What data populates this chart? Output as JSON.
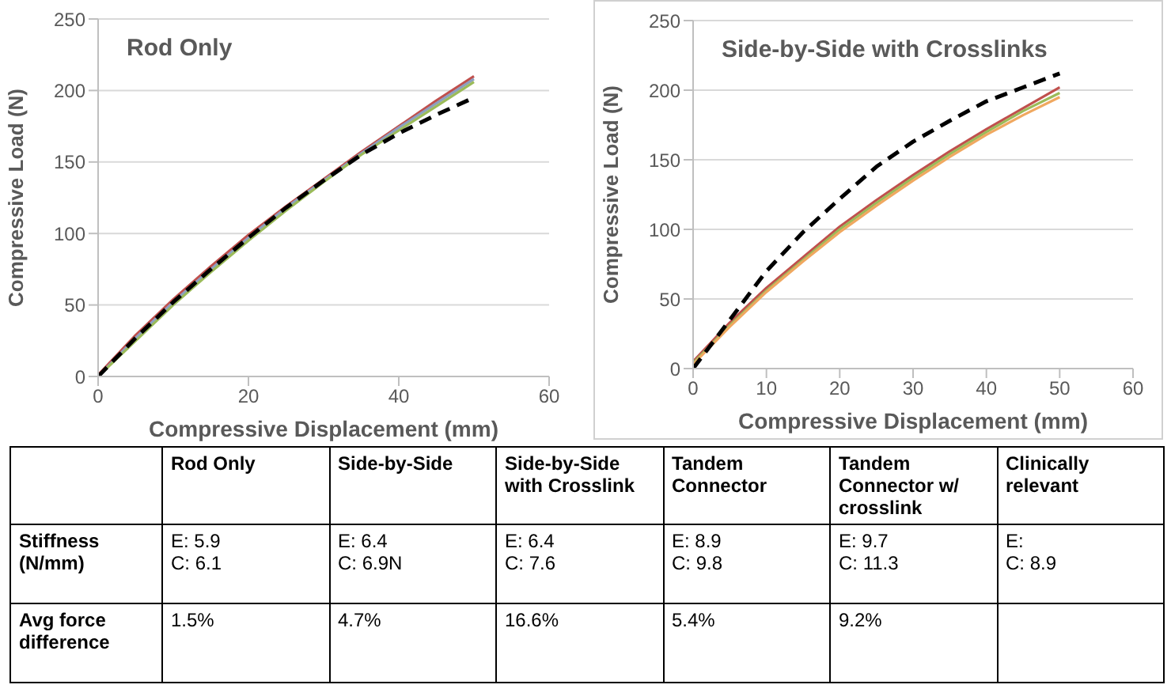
{
  "chart_data": [
    {
      "type": "line",
      "title": "Rod Only",
      "xlabel": "Compressive Displacement (mm)",
      "ylabel": "Compressive Load (N)",
      "x": [
        0,
        5,
        10,
        15,
        20,
        25,
        30,
        35,
        40,
        45,
        50
      ],
      "xlim": [
        0,
        60
      ],
      "xticks": [
        0,
        20,
        40,
        60
      ],
      "ylim": [
        0,
        250
      ],
      "yticks": [
        0,
        50,
        100,
        150,
        200,
        250
      ],
      "grid": "y",
      "legend": false,
      "marker": "none",
      "series": [
        {
          "color": "#c0504d",
          "values": [
            1,
            29,
            54,
            77,
            99,
            119,
            138,
            157,
            175,
            193,
            210
          ]
        },
        {
          "color": "#8c9fc0",
          "values": [
            0,
            27,
            52,
            75,
            97,
            118,
            137,
            156,
            174,
            191,
            208
          ]
        },
        {
          "color": "#9bbb59",
          "values": [
            0,
            25,
            50,
            73,
            95,
            116,
            136,
            155,
            172,
            189,
            206
          ]
        },
        {
          "color": "#000000",
          "line_style": "dashed",
          "values": [
            0,
            27,
            52,
            75,
            97,
            118,
            137,
            155,
            170,
            183,
            195
          ]
        }
      ]
    },
    {
      "type": "line",
      "title": "Side-by-Side with Crosslinks",
      "xlabel": "Compressive Displacement (mm)",
      "ylabel": "Compressive Load (N)",
      "x": [
        0,
        5,
        10,
        15,
        20,
        25,
        30,
        35,
        40,
        45,
        50
      ],
      "xlim": [
        0,
        60
      ],
      "xticks": [
        0,
        10,
        20,
        30,
        40,
        50,
        60
      ],
      "ylim": [
        0,
        250
      ],
      "yticks": [
        0,
        50,
        100,
        150,
        200,
        250
      ],
      "grid": "y",
      "legend": false,
      "marker": "none",
      "series": [
        {
          "color": "#c0504d",
          "values": [
            5,
            33,
            58,
            80,
            102,
            121,
            139,
            156,
            172,
            187,
            202
          ]
        },
        {
          "color": "#9bbb59",
          "values": [
            4,
            31,
            56,
            78,
            100,
            119,
            137,
            154,
            170,
            185,
            198
          ]
        },
        {
          "color": "#f0a860",
          "values": [
            3,
            30,
            55,
            77,
            98,
            117,
            135,
            152,
            168,
            182,
            195
          ]
        },
        {
          "color": "#000000",
          "line_style": "dashed",
          "values": [
            0,
            35,
            70,
            98,
            122,
            145,
            163,
            178,
            192,
            202,
            212
          ]
        }
      ]
    },
    {
      "type": "other",
      "categories": [
        "Rod Only",
        "Side-by-Side",
        "Side-by-Side with Crosslink",
        "Tandem Connector",
        "Tandem Connector w/ crosslink",
        "Clinically relevant"
      ],
      "y_categories": [
        "Stiffness (N/mm)",
        "Avg force difference"
      ],
      "cell_labels": [
        [
          "E: 5.9\nC: 6.1",
          "E: 6.4\nC: 6.9N",
          "E: 6.4\nC: 7.6",
          "E: 8.9\nC: 9.8",
          "E: 9.7\nC: 11.3",
          "E:\nC: 8.9"
        ],
        [
          "1.5%",
          "4.7%",
          "16.6%",
          "5.4%",
          "9.2%",
          null
        ]
      ]
    }
  ]
}
